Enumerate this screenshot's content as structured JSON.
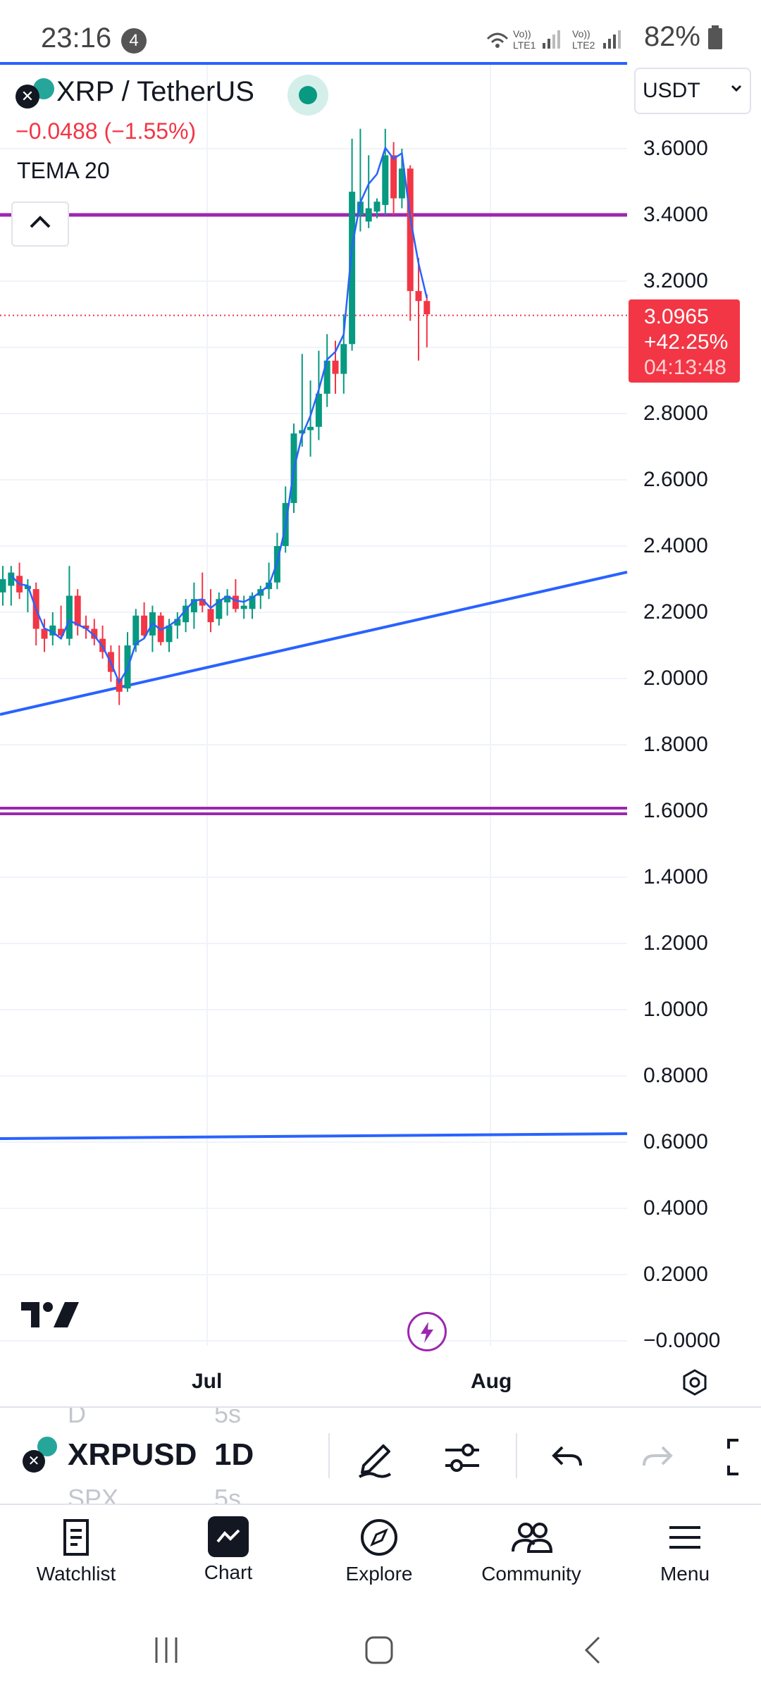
{
  "status_bar": {
    "time": "23:16",
    "notification_count": "4",
    "battery": "82%"
  },
  "symbol": {
    "title": "XRP / TetherUS",
    "change": "−0.0488 (−1.55%)",
    "indicator": "TEMA 20",
    "currency": "USDT"
  },
  "price_tag": {
    "price": "3.0965",
    "change_pct": "+42.25%",
    "countdown": "04:13:48"
  },
  "price_axis": [
    "3.6000",
    "3.4000",
    "3.2000",
    "3.0000",
    "2.8000",
    "2.6000",
    "2.4000",
    "2.2000",
    "2.0000",
    "1.8000",
    "1.6000",
    "1.4000",
    "1.2000",
    "1.0000",
    "0.8000",
    "0.6000",
    "0.4000",
    "0.2000",
    "−0.0000"
  ],
  "time_axis": [
    "Jul",
    "Aug"
  ],
  "toolbar": {
    "symbol": "XRPUSD",
    "interval": "1D",
    "ghost_top_left": "D",
    "ghost_top_mid": "5s",
    "ghost_bottom_left": "SPX",
    "ghost_bottom_mid": "5s"
  },
  "bottom_nav": [
    {
      "label": "Watchlist",
      "icon": "watchlist-icon"
    },
    {
      "label": "Chart",
      "icon": "chart-icon"
    },
    {
      "label": "Explore",
      "icon": "compass-icon"
    },
    {
      "label": "Community",
      "icon": "community-icon"
    },
    {
      "label": "Menu",
      "icon": "menu-icon"
    }
  ],
  "chart_data": {
    "type": "candlestick",
    "colors": {
      "up": "#089981",
      "down": "#f23645",
      "tema": "#2962ff",
      "trendline": "#2962ff",
      "horizontal_line": "#9c27b0"
    },
    "ylim": [
      0,
      3.7
    ],
    "horizontal_lines": [
      3.4,
      1.6
    ],
    "last_price": 3.0965,
    "candles": [
      {
        "o": 2.26,
        "h": 2.34,
        "l": 2.22,
        "c": 2.3
      },
      {
        "o": 2.28,
        "h": 2.34,
        "l": 2.22,
        "c": 2.32
      },
      {
        "o": 2.31,
        "h": 2.35,
        "l": 2.24,
        "c": 2.26
      },
      {
        "o": 2.27,
        "h": 2.3,
        "l": 2.2,
        "c": 2.28
      },
      {
        "o": 2.27,
        "h": 2.29,
        "l": 2.1,
        "c": 2.15
      },
      {
        "o": 2.15,
        "h": 2.18,
        "l": 2.08,
        "c": 2.12
      },
      {
        "o": 2.13,
        "h": 2.2,
        "l": 2.1,
        "c": 2.16
      },
      {
        "o": 2.15,
        "h": 2.22,
        "l": 2.12,
        "c": 2.13
      },
      {
        "o": 2.12,
        "h": 2.34,
        "l": 2.1,
        "c": 2.25
      },
      {
        "o": 2.25,
        "h": 2.27,
        "l": 2.13,
        "c": 2.16
      },
      {
        "o": 2.16,
        "h": 2.19,
        "l": 2.12,
        "c": 2.15
      },
      {
        "o": 2.15,
        "h": 2.18,
        "l": 2.1,
        "c": 2.12
      },
      {
        "o": 2.12,
        "h": 2.16,
        "l": 2.06,
        "c": 2.08
      },
      {
        "o": 2.08,
        "h": 2.1,
        "l": 1.99,
        "c": 2.02
      },
      {
        "o": 2.0,
        "h": 2.1,
        "l": 1.92,
        "c": 1.96
      },
      {
        "o": 1.97,
        "h": 2.14,
        "l": 1.96,
        "c": 2.1
      },
      {
        "o": 2.1,
        "h": 2.21,
        "l": 2.08,
        "c": 2.19
      },
      {
        "o": 2.19,
        "h": 2.23,
        "l": 2.12,
        "c": 2.13
      },
      {
        "o": 2.13,
        "h": 2.22,
        "l": 2.08,
        "c": 2.2
      },
      {
        "o": 2.19,
        "h": 2.2,
        "l": 2.1,
        "c": 2.11
      },
      {
        "o": 2.11,
        "h": 2.18,
        "l": 2.08,
        "c": 2.16
      },
      {
        "o": 2.16,
        "h": 2.2,
        "l": 2.12,
        "c": 2.18
      },
      {
        "o": 2.17,
        "h": 2.24,
        "l": 2.14,
        "c": 2.22
      },
      {
        "o": 2.2,
        "h": 2.29,
        "l": 2.15,
        "c": 2.24
      },
      {
        "o": 2.24,
        "h": 2.32,
        "l": 2.2,
        "c": 2.22
      },
      {
        "o": 2.21,
        "h": 2.27,
        "l": 2.14,
        "c": 2.17
      },
      {
        "o": 2.18,
        "h": 2.26,
        "l": 2.16,
        "c": 2.24
      },
      {
        "o": 2.23,
        "h": 2.27,
        "l": 2.19,
        "c": 2.25
      },
      {
        "o": 2.25,
        "h": 2.3,
        "l": 2.2,
        "c": 2.21
      },
      {
        "o": 2.21,
        "h": 2.25,
        "l": 2.18,
        "c": 2.22
      },
      {
        "o": 2.21,
        "h": 2.26,
        "l": 2.18,
        "c": 2.25
      },
      {
        "o": 2.25,
        "h": 2.28,
        "l": 2.21,
        "c": 2.27
      },
      {
        "o": 2.27,
        "h": 2.35,
        "l": 2.24,
        "c": 2.29
      },
      {
        "o": 2.29,
        "h": 2.44,
        "l": 2.27,
        "c": 2.4
      },
      {
        "o": 2.4,
        "h": 2.58,
        "l": 2.38,
        "c": 2.53
      },
      {
        "o": 2.53,
        "h": 2.77,
        "l": 2.5,
        "c": 2.74
      },
      {
        "o": 2.74,
        "h": 2.98,
        "l": 2.7,
        "c": 2.75
      },
      {
        "o": 2.75,
        "h": 2.9,
        "l": 2.67,
        "c": 2.76
      },
      {
        "o": 2.76,
        "h": 2.99,
        "l": 2.72,
        "c": 2.86
      },
      {
        "o": 2.86,
        "h": 3.04,
        "l": 2.82,
        "c": 2.96
      },
      {
        "o": 2.96,
        "h": 3.02,
        "l": 2.86,
        "c": 2.92
      },
      {
        "o": 2.92,
        "h": 3.1,
        "l": 2.86,
        "c": 3.01
      },
      {
        "o": 3.01,
        "h": 3.63,
        "l": 2.99,
        "c": 3.47
      },
      {
        "o": 3.4,
        "h": 3.66,
        "l": 3.35,
        "c": 3.44
      },
      {
        "o": 3.38,
        "h": 3.58,
        "l": 3.36,
        "c": 3.42
      },
      {
        "o": 3.41,
        "h": 3.45,
        "l": 3.39,
        "c": 3.44
      },
      {
        "o": 3.43,
        "h": 3.66,
        "l": 3.4,
        "c": 3.58
      },
      {
        "o": 3.58,
        "h": 3.62,
        "l": 3.4,
        "c": 3.45
      },
      {
        "o": 3.45,
        "h": 3.6,
        "l": 3.42,
        "c": 3.54
      },
      {
        "o": 3.54,
        "h": 3.55,
        "l": 3.08,
        "c": 3.17
      },
      {
        "o": 3.17,
        "h": 3.27,
        "l": 2.96,
        "c": 3.14
      },
      {
        "o": 3.14,
        "h": 3.16,
        "l": 3.0,
        "c": 3.1
      }
    ]
  }
}
